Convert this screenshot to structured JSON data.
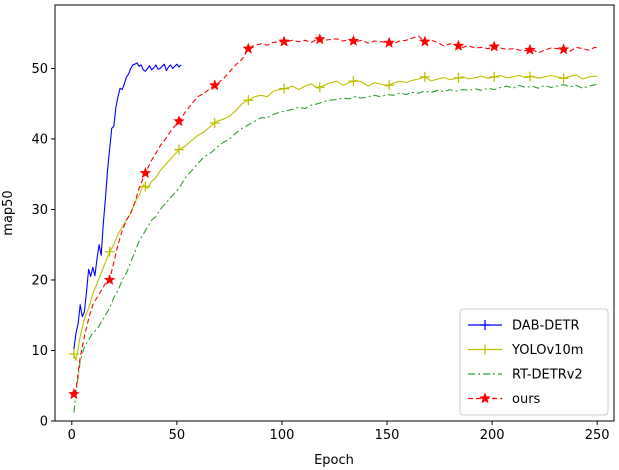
{
  "chart_data": {
    "type": "line",
    "title": "",
    "xlabel": "Epoch",
    "ylabel": "map50",
    "xlim": [
      -8,
      258
    ],
    "ylim": [
      0,
      59
    ],
    "xticks": [
      0,
      50,
      100,
      150,
      200,
      250
    ],
    "yticks": [
      0,
      10,
      20,
      30,
      40,
      50
    ],
    "grid": false,
    "legend_position": "lower-right",
    "series": [
      {
        "name": "DAB-DETR",
        "color": "#0000ff",
        "linestyle": "solid",
        "marker": "+",
        "x": [
          1,
          2,
          3,
          4,
          5,
          6,
          7,
          8,
          9,
          10,
          11,
          12,
          13,
          14,
          15,
          16,
          17,
          18,
          19,
          20,
          21,
          22,
          23,
          24,
          25,
          26,
          27,
          28,
          29,
          30,
          31,
          32,
          33,
          34,
          35,
          36,
          37,
          38,
          39,
          40,
          41,
          42,
          43,
          44,
          45,
          46,
          47,
          48,
          49,
          50,
          51,
          52
        ],
        "y": [
          10.2,
          12.5,
          13.8,
          16.5,
          14.8,
          15.5,
          18.3,
          21.5,
          20.5,
          21.8,
          20.6,
          23.0,
          25.0,
          23.5,
          28.0,
          31.5,
          35.5,
          38.5,
          41.5,
          41.8,
          44.5,
          46.0,
          47.2,
          47.0,
          47.8,
          48.8,
          49.2,
          50.0,
          50.5,
          50.6,
          50.8,
          50.3,
          50.5,
          49.8,
          49.6,
          50.0,
          50.4,
          49.8,
          50.1,
          50.5,
          49.9,
          50.0,
          50.3,
          50.6,
          49.7,
          50.2,
          50.5,
          50.0,
          50.3,
          50.6,
          50.2,
          50.5
        ],
        "marker_x": []
      },
      {
        "name": "YOLOv10m",
        "color": "#bfbf00",
        "linestyle": "solid",
        "marker": "+",
        "x": [
          1,
          2,
          4,
          6,
          8,
          10,
          12,
          14,
          16,
          18,
          20,
          22,
          24,
          26,
          28,
          30,
          32,
          34,
          36,
          38,
          40,
          42,
          45,
          48,
          51,
          54,
          57,
          60,
          63,
          66,
          69,
          72,
          75,
          78,
          81,
          84,
          87,
          90,
          93,
          96,
          99,
          102,
          105,
          108,
          111,
          114,
          117,
          120,
          123,
          126,
          129,
          132,
          135,
          138,
          141,
          144,
          147,
          150,
          153,
          156,
          159,
          162,
          165,
          168,
          171,
          174,
          177,
          180,
          183,
          186,
          189,
          192,
          195,
          198,
          201,
          204,
          207,
          210,
          213,
          216,
          219,
          222,
          225,
          228,
          231,
          234,
          237,
          240,
          243,
          246,
          249,
          250
        ],
        "y": [
          9.5,
          8.6,
          12.0,
          14.5,
          16.0,
          18.0,
          19.5,
          21.0,
          22.5,
          24.0,
          25.0,
          26.5,
          27.5,
          28.5,
          29.5,
          31.0,
          32.0,
          33.5,
          33.0,
          34.0,
          34.5,
          35.5,
          36.5,
          37.5,
          38.5,
          39.0,
          39.8,
          40.5,
          41.0,
          41.8,
          42.5,
          42.8,
          43.2,
          44.0,
          45.0,
          45.5,
          46.0,
          46.2,
          46.0,
          46.8,
          47.0,
          47.2,
          47.5,
          47.0,
          47.5,
          47.8,
          47.2,
          47.6,
          48.0,
          48.2,
          47.6,
          48.0,
          48.3,
          48.1,
          47.5,
          48.0,
          47.8,
          47.5,
          47.9,
          48.2,
          48.0,
          48.3,
          48.5,
          48.8,
          48.2,
          48.5,
          48.7,
          48.4,
          48.6,
          48.8,
          48.5,
          48.7,
          48.9,
          48.6,
          48.8,
          49.0,
          48.7,
          48.8,
          49.0,
          48.7,
          48.9,
          48.6,
          48.8,
          49.0,
          48.8,
          48.6,
          48.9,
          49.1,
          48.5,
          48.8,
          48.9,
          48.9
        ],
        "marker_x": [
          1,
          18,
          35,
          51,
          68,
          84,
          101,
          118,
          134,
          151,
          168,
          184,
          201,
          218,
          234
        ]
      },
      {
        "name": "RT-DETRv2",
        "color": "#2ca02c",
        "linestyle": "dashdot",
        "marker": "",
        "x": [
          1,
          2,
          4,
          6,
          8,
          10,
          12,
          14,
          16,
          18,
          20,
          22,
          24,
          26,
          28,
          30,
          32,
          34,
          36,
          38,
          40,
          42,
          45,
          48,
          51,
          54,
          57,
          60,
          63,
          66,
          69,
          72,
          75,
          78,
          81,
          84,
          87,
          90,
          93,
          96,
          99,
          102,
          105,
          108,
          111,
          114,
          117,
          120,
          123,
          126,
          129,
          132,
          135,
          138,
          141,
          144,
          147,
          150,
          153,
          156,
          159,
          162,
          165,
          168,
          171,
          174,
          177,
          180,
          183,
          186,
          189,
          192,
          195,
          198,
          201,
          204,
          207,
          210,
          213,
          216,
          219,
          222,
          225,
          228,
          231,
          234,
          237,
          240,
          243,
          246,
          249,
          250
        ],
        "y": [
          1.2,
          4.0,
          8.5,
          10.5,
          11.5,
          12.5,
          13.0,
          14.0,
          15.0,
          16.0,
          17.5,
          18.5,
          20.0,
          21.0,
          22.5,
          24.0,
          25.5,
          26.5,
          27.5,
          28.5,
          29.0,
          30.0,
          31.0,
          32.0,
          33.0,
          34.5,
          35.5,
          36.5,
          37.5,
          38.0,
          38.8,
          39.5,
          40.0,
          40.8,
          41.5,
          42.0,
          42.5,
          43.0,
          43.0,
          43.5,
          43.8,
          44.0,
          44.2,
          44.5,
          44.3,
          44.8,
          45.0,
          45.3,
          45.5,
          45.6,
          45.8,
          45.7,
          46.0,
          45.8,
          46.0,
          46.2,
          46.0,
          46.3,
          46.2,
          46.5,
          46.3,
          46.6,
          46.5,
          46.8,
          46.6,
          46.9,
          46.7,
          47.0,
          46.8,
          47.0,
          46.9,
          47.1,
          46.9,
          47.2,
          47.0,
          47.3,
          47.5,
          47.2,
          47.6,
          47.3,
          47.5,
          47.2,
          47.6,
          47.3,
          47.5,
          47.7,
          47.4,
          47.6,
          47.2,
          47.5,
          47.7,
          47.7
        ],
        "marker_x": []
      },
      {
        "name": "ours",
        "color": "#ff0000",
        "linestyle": "dashed",
        "marker": "*",
        "x": [
          1,
          2,
          4,
          6,
          8,
          10,
          12,
          14,
          16,
          18,
          20,
          22,
          24,
          26,
          28,
          30,
          32,
          34,
          36,
          38,
          40,
          42,
          45,
          48,
          51,
          54,
          57,
          60,
          63,
          66,
          69,
          72,
          75,
          78,
          81,
          84,
          87,
          90,
          93,
          96,
          99,
          102,
          105,
          108,
          111,
          114,
          117,
          120,
          123,
          126,
          129,
          132,
          135,
          138,
          141,
          144,
          147,
          150,
          153,
          156,
          159,
          162,
          165,
          168,
          171,
          174,
          177,
          180,
          183,
          186,
          189,
          192,
          195,
          198,
          201,
          204,
          207,
          210,
          213,
          216,
          219,
          222,
          225,
          228,
          231,
          234,
          237,
          240,
          243,
          246,
          249,
          250
        ],
        "y": [
          3.8,
          4.5,
          9.0,
          12.0,
          14.5,
          16.5,
          17.5,
          18.5,
          19.5,
          20.0,
          22.5,
          25.0,
          27.0,
          28.5,
          29.5,
          31.0,
          33.0,
          34.5,
          35.8,
          37.0,
          38.0,
          39.0,
          40.2,
          41.5,
          42.5,
          43.8,
          45.0,
          46.0,
          46.5,
          47.2,
          47.8,
          48.5,
          49.5,
          50.5,
          51.3,
          52.8,
          53.3,
          53.5,
          53.3,
          53.7,
          53.8,
          53.8,
          54.0,
          53.8,
          54.0,
          53.7,
          54.2,
          54.0,
          54.1,
          54.2,
          53.9,
          54.1,
          53.8,
          54.0,
          53.6,
          53.9,
          53.8,
          53.7,
          53.5,
          53.9,
          54.0,
          54.3,
          54.6,
          53.8,
          54.0,
          53.7,
          53.2,
          53.5,
          53.3,
          53.0,
          53.2,
          52.9,
          53.0,
          52.8,
          53.1,
          52.9,
          52.7,
          52.8,
          52.6,
          52.5,
          52.7,
          52.2,
          52.6,
          52.9,
          52.8,
          52.7,
          52.4,
          53.0,
          52.8,
          52.6,
          53.0,
          52.9
        ],
        "marker_x": [
          1,
          18,
          35,
          51,
          68,
          84,
          101,
          118,
          134,
          151,
          168,
          184,
          201,
          218,
          234
        ]
      }
    ]
  }
}
